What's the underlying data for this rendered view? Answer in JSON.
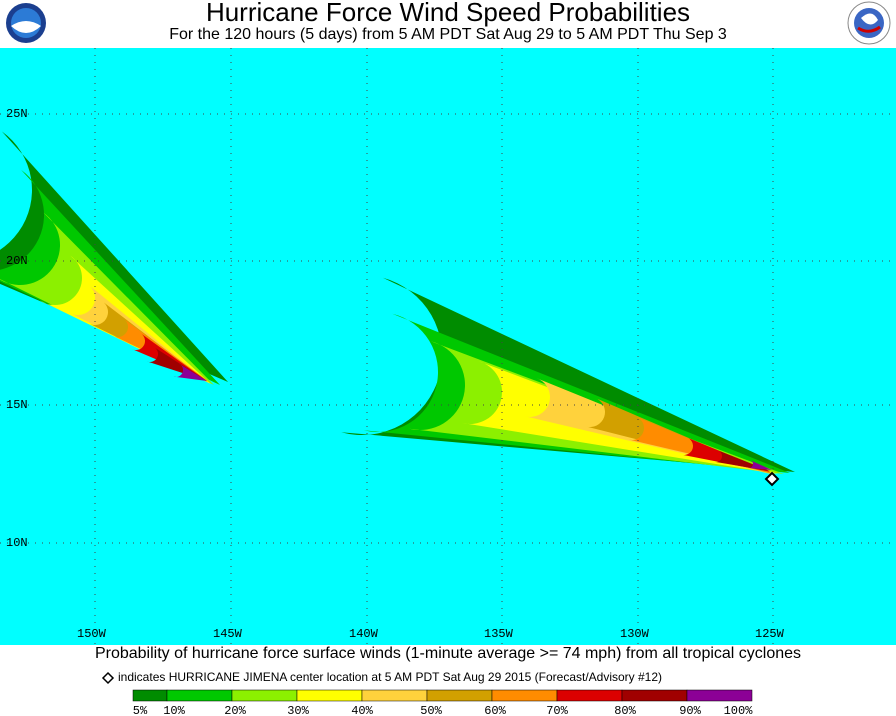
{
  "header": {
    "title": "Hurricane Force Wind Speed Probabilities",
    "subtitle": "For the 120 hours (5 days) from 5 AM PDT Sat Aug 29 to 5 AM PDT Thu Sep 3"
  },
  "map": {
    "lat_labels": [
      "25N",
      "20N",
      "15N",
      "10N"
    ],
    "lon_labels": [
      "150W",
      "145W",
      "140W",
      "135W",
      "130W",
      "125W"
    ]
  },
  "footer": {
    "caption": "Probability of hurricane force surface winds (1-minute average >= 74 mph) from all tropical cyclones",
    "marker_note": "indicates HURRICANE JIMENA center location at 5 AM PDT Sat Aug 29 2015 (Forecast/Advisory #12)",
    "legend": [
      "5%",
      "10%",
      "20%",
      "30%",
      "40%",
      "50%",
      "60%",
      "70%",
      "80%",
      "90%",
      "100%"
    ]
  }
}
